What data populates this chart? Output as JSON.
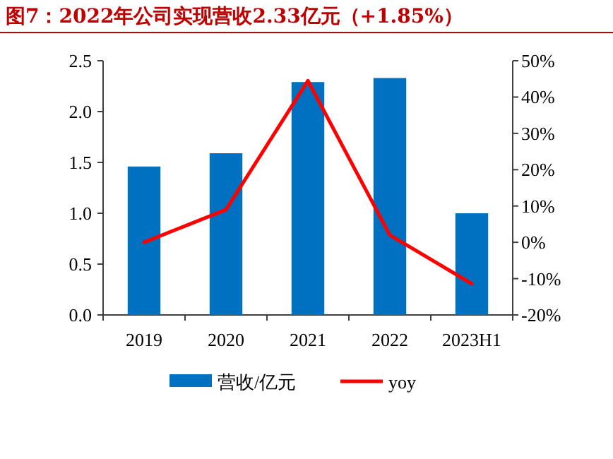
{
  "chart_data": {
    "type": "bar",
    "title": "图7：2022年公司实现营收2.33亿元（+1.85%）",
    "categories": [
      "2019",
      "2020",
      "2021",
      "2022",
      "2023H1"
    ],
    "series": [
      {
        "name": "营收/亿元",
        "color": "#0070c0",
        "values": [
          1.46,
          1.59,
          2.29,
          2.33,
          1.0
        ]
      },
      {
        "name": "yoy",
        "type": "line",
        "axis": "y2",
        "color": "#ff0000",
        "values": [
          0,
          9,
          44.5,
          2,
          -11.4
        ]
      }
    ],
    "ylim": [
      0,
      2.5
    ],
    "yticks": [
      {
        "value": 0,
        "label": "0.0"
      },
      {
        "value": 0.5,
        "label": "0.5"
      },
      {
        "value": 1,
        "label": "1.0"
      },
      {
        "value": 1.5,
        "label": "1.5"
      },
      {
        "value": 2,
        "label": "2.0"
      },
      {
        "value": 2.5,
        "label": "2.5"
      }
    ],
    "y2lim": [
      -20,
      50
    ],
    "y2ticks": [
      {
        "value": -20,
        "label": "-20%"
      },
      {
        "value": -10,
        "label": "-10%"
      },
      {
        "value": 0,
        "label": "0%"
      },
      {
        "value": 10,
        "label": "10%"
      },
      {
        "value": 20,
        "label": "20%"
      },
      {
        "value": 30,
        "label": "30%"
      },
      {
        "value": 40,
        "label": "40%"
      },
      {
        "value": 50,
        "label": "50%"
      }
    ],
    "grid": false,
    "legend": "bottom",
    "marker": "none",
    "line_style": "solid"
  }
}
